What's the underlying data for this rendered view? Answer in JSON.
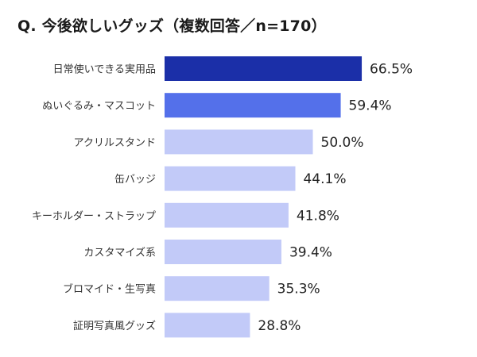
{
  "chart_data": {
    "type": "bar",
    "orientation": "horizontal",
    "title": "Q. 今後欲しいグッズ（複数回答／n=170）",
    "categories": [
      "日常使いできる実用品",
      "ぬいぐるみ・マスコット",
      "アクリルスタンド",
      "缶バッジ",
      "キーホルダー・ストラップ",
      "カスタマイズ系",
      "ブロマイド・生写真",
      "証明写真風グッズ"
    ],
    "values": [
      66.5,
      59.4,
      50.0,
      44.1,
      41.8,
      39.4,
      35.3,
      28.8
    ],
    "value_labels": [
      "66.5%",
      "59.4%",
      "50.0%",
      "44.1%",
      "41.8%",
      "39.4%",
      "35.3%",
      "28.8%"
    ],
    "unit": "%",
    "colors": [
      "#1b2fa8",
      "#5470ea",
      "#c2caf8",
      "#c2caf8",
      "#c2caf8",
      "#c2caf8",
      "#c2caf8",
      "#c2caf8"
    ],
    "grid": false,
    "legend": "none"
  }
}
